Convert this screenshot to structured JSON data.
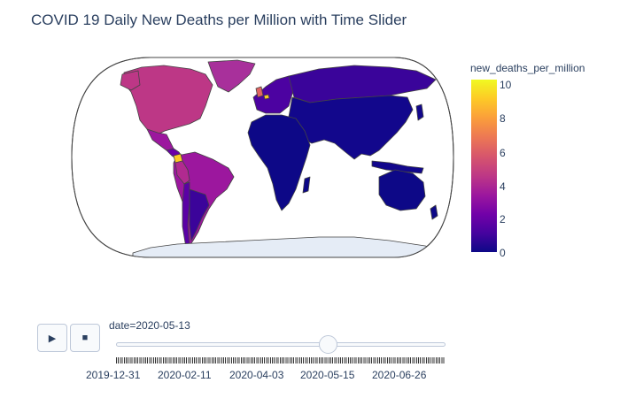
{
  "title": "COVID 19 Daily New Deaths per Million with Time Slider",
  "colorbar": {
    "title": "new_deaths_per_million",
    "ticks": [
      "10",
      "8",
      "6",
      "4",
      "2",
      "0"
    ],
    "scale_colors": [
      "#0d0887",
      "#46039f",
      "#7201a8",
      "#9c179e",
      "#bd3786",
      "#d8576b",
      "#ed7953",
      "#fb9f3a",
      "#fdca26",
      "#f0f921"
    ]
  },
  "map": {
    "projection": "robinson",
    "ocean_color": "#ffffff",
    "land_color": "#e5ecf6",
    "border_color": "#444444",
    "regions": [
      {
        "name": "North America",
        "color": "#bd3786",
        "value": 5
      },
      {
        "name": "Greenland",
        "color": "#a8309b",
        "value": 4.5
      },
      {
        "name": "Mexico",
        "color": "#9c179e",
        "value": 3.5
      },
      {
        "name": "Central America",
        "color": "#6a00a8",
        "value": 2
      },
      {
        "name": "Ecuador",
        "color": "#fdca26",
        "value": 10
      },
      {
        "name": "South America",
        "color": "#9c179e",
        "value": 3.8
      },
      {
        "name": "Peru",
        "color": "#b12a90",
        "value": 5
      },
      {
        "name": "Chile",
        "color": "#5a01a5",
        "value": 1.5
      },
      {
        "name": "Argentina",
        "color": "#3b049a",
        "value": 0.8
      },
      {
        "name": "Europe",
        "color": "#4c02a1",
        "value": 1.2
      },
      {
        "name": "United Kingdom",
        "color": "#e16462",
        "value": 6.5
      },
      {
        "name": "Belgium",
        "color": "#fdca26",
        "value": 10
      },
      {
        "name": "Russia",
        "color": "#3a049a",
        "value": 0.8
      },
      {
        "name": "Asia",
        "color": "#12078c",
        "value": 0.2
      },
      {
        "name": "Africa",
        "color": "#0d0887",
        "value": 0.1
      },
      {
        "name": "Australia",
        "color": "#0d0887",
        "value": 0
      },
      {
        "name": "Antarctica",
        "color": "#e5ecf6",
        "value": null
      }
    ]
  },
  "controls": {
    "play_icon": "play-icon",
    "stop_icon": "stop-icon",
    "play_glyph": "▶",
    "stop_glyph": "■"
  },
  "slider": {
    "current_label": "date=2020-05-13",
    "current_date": "2020-05-13",
    "position_fraction": 0.645,
    "tick_labels": [
      "2019-12-31",
      "2020-02-11",
      "2020-04-03",
      "2020-05-15",
      "2020-06-26"
    ]
  }
}
